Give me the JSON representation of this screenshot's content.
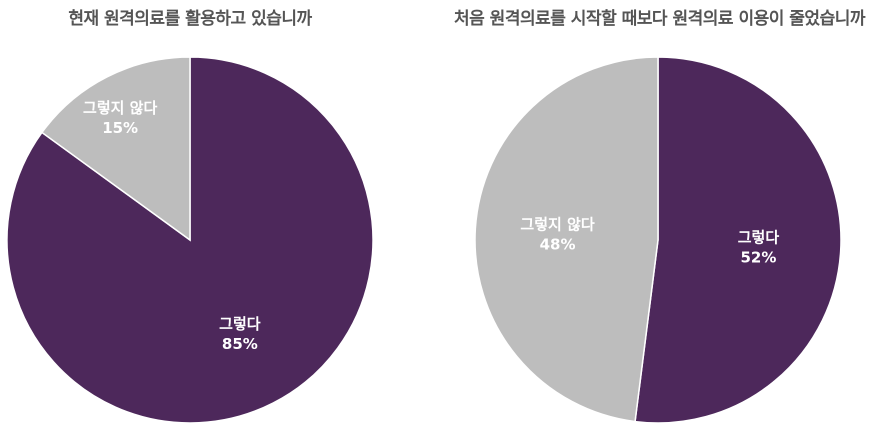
{
  "chart_data": [
    {
      "type": "pie",
      "title": "현재 원격의료를 활용하고 있습니까",
      "slices": [
        {
          "label": "그렇다",
          "value": 85,
          "value_label": "85%",
          "color": "#4d285b"
        },
        {
          "label": "그렇지 않다",
          "value": 15,
          "value_label": "15%",
          "color": "#bdbdbd"
        }
      ]
    },
    {
      "type": "pie",
      "title": "처음 원격의료를 시작할 때보다 원격의료 이용이 줄었습니까",
      "slices": [
        {
          "label": "그렇다",
          "value": 52,
          "value_label": "52%",
          "color": "#4d285b"
        },
        {
          "label": "그렇지 않다",
          "value": 48,
          "value_label": "48%",
          "color": "#bdbdbd"
        }
      ]
    }
  ]
}
